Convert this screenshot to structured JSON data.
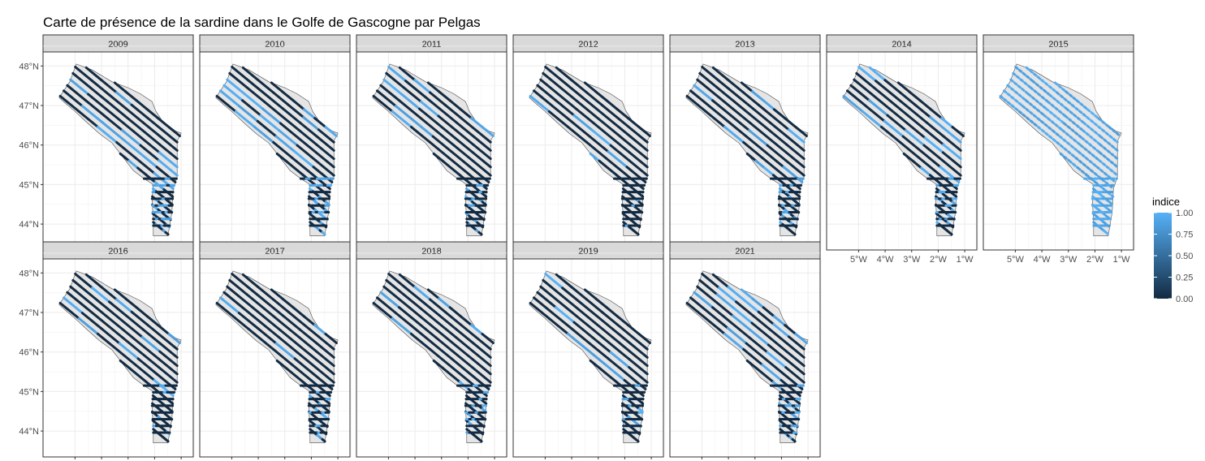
{
  "chart_data": {
    "type": "faceted-map",
    "title": "Carte de présence de la sardine dans le Golfe de Gascogne par Pelgas",
    "panels": [
      "2009",
      "2010",
      "2011",
      "2012",
      "2013",
      "2014",
      "2015",
      "2016",
      "2017",
      "2018",
      "2019",
      "2021"
    ],
    "panel_presence_level": [
      0.25,
      0.35,
      0.25,
      0.05,
      0.2,
      0.3,
      1.0,
      0.1,
      0.12,
      0.2,
      0.12,
      0.3
    ],
    "x_ticks": [
      "5°W",
      "4°W",
      "3°W",
      "2°W",
      "1°W"
    ],
    "x_tick_values": [
      -5,
      -4,
      -3,
      -2,
      -1
    ],
    "y_ticks": [
      "48°N",
      "47°N",
      "46°N",
      "45°N",
      "44°N"
    ],
    "y_tick_values": [
      48,
      47,
      46,
      45,
      44
    ],
    "xlim": [
      -5.9,
      -0.85
    ],
    "ylim": [
      43.55,
      48.15
    ],
    "grid": true,
    "legend": {
      "title": "indice",
      "labels": [
        "1.00",
        "0.75",
        "0.50",
        "0.25",
        "0.00"
      ],
      "values": [
        1.0,
        0.75,
        0.5,
        0.25,
        0.0
      ],
      "color_low": "#132B43",
      "color_high": "#56B1F7",
      "position": "right"
    },
    "colors": {
      "land_fill": "#e5e5e5",
      "strip_fill": "#d9d9d9",
      "grid": "#ebebeb"
    }
  }
}
